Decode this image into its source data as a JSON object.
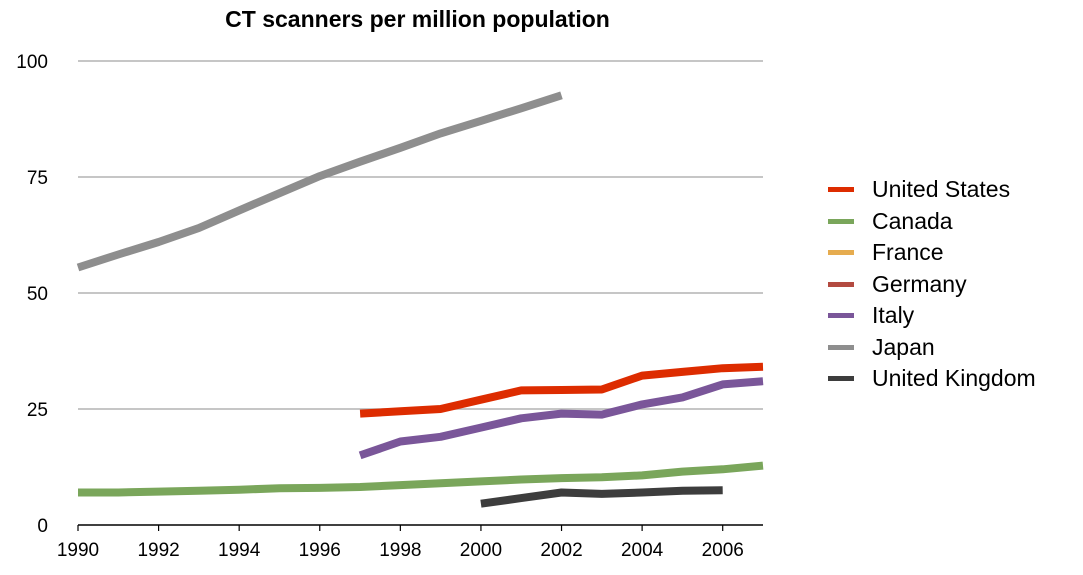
{
  "chart_data": {
    "type": "line",
    "title": "CT scanners per million population",
    "xlabel": "",
    "ylabel": "",
    "xlim": [
      1990,
      2007
    ],
    "ylim": [
      0,
      100
    ],
    "x_ticks": [
      "1990",
      "1992",
      "1994",
      "1996",
      "1998",
      "2000",
      "2002",
      "2004",
      "2006"
    ],
    "y_ticks": [
      "0",
      "25",
      "50",
      "75",
      "100"
    ],
    "grid": true,
    "legend_position": "right",
    "series": [
      {
        "name": "United States",
        "color": "#dd2c00",
        "points": [
          [
            1997,
            24
          ],
          [
            1998,
            24.5
          ],
          [
            1999,
            25
          ],
          [
            2000,
            27
          ],
          [
            2001,
            29
          ],
          [
            2002,
            29.1
          ],
          [
            2003,
            29.2
          ],
          [
            2004,
            32.2
          ],
          [
            2005,
            33
          ],
          [
            2006,
            33.8
          ],
          [
            2007,
            34.1
          ]
        ]
      },
      {
        "name": "Canada",
        "color": "#7aa65b",
        "points": [
          [
            1990,
            7
          ],
          [
            1991,
            7
          ],
          [
            1992,
            7.2
          ],
          [
            1993,
            7.4
          ],
          [
            1994,
            7.6
          ],
          [
            1995,
            7.9
          ],
          [
            1996,
            8
          ],
          [
            1997,
            8.2
          ],
          [
            1998,
            8.6
          ],
          [
            1999,
            9
          ],
          [
            2000,
            9.4
          ],
          [
            2001,
            9.8
          ],
          [
            2002,
            10.1
          ],
          [
            2003,
            10.3
          ],
          [
            2004,
            10.7
          ],
          [
            2005,
            11.5
          ],
          [
            2006,
            12
          ],
          [
            2007,
            12.8
          ]
        ]
      },
      {
        "name": "France",
        "color": "#e6ac4f",
        "points": []
      },
      {
        "name": "Germany",
        "color": "#b34a40",
        "points": []
      },
      {
        "name": "Italy",
        "color": "#7a5699",
        "points": [
          [
            1997,
            15
          ],
          [
            1998,
            18
          ],
          [
            1999,
            19
          ],
          [
            2000,
            21
          ],
          [
            2001,
            23
          ],
          [
            2002,
            24
          ],
          [
            2003,
            23.8
          ],
          [
            2004,
            26
          ],
          [
            2005,
            27.5
          ],
          [
            2006,
            30.3
          ],
          [
            2007,
            31
          ]
        ]
      },
      {
        "name": "Japan",
        "color": "#8e8e8e",
        "points": [
          [
            1990,
            55.5
          ],
          [
            1991,
            58.3
          ],
          [
            1992,
            61
          ],
          [
            1993,
            64
          ],
          [
            1994,
            67.8
          ],
          [
            1995,
            71.5
          ],
          [
            1996,
            75.2
          ],
          [
            1997,
            78.3
          ],
          [
            1998,
            81.3
          ],
          [
            1999,
            84.4
          ],
          [
            2000,
            87.1
          ],
          [
            2001,
            89.8
          ],
          [
            2002,
            92.6
          ]
        ]
      },
      {
        "name": "United Kingdom",
        "color": "#3d3d3d",
        "points": [
          [
            2000,
            4.6
          ],
          [
            2001,
            5.8
          ],
          [
            2002,
            7
          ],
          [
            2003,
            6.7
          ],
          [
            2004,
            7
          ],
          [
            2005,
            7.4
          ],
          [
            2006,
            7.5
          ]
        ]
      }
    ]
  }
}
